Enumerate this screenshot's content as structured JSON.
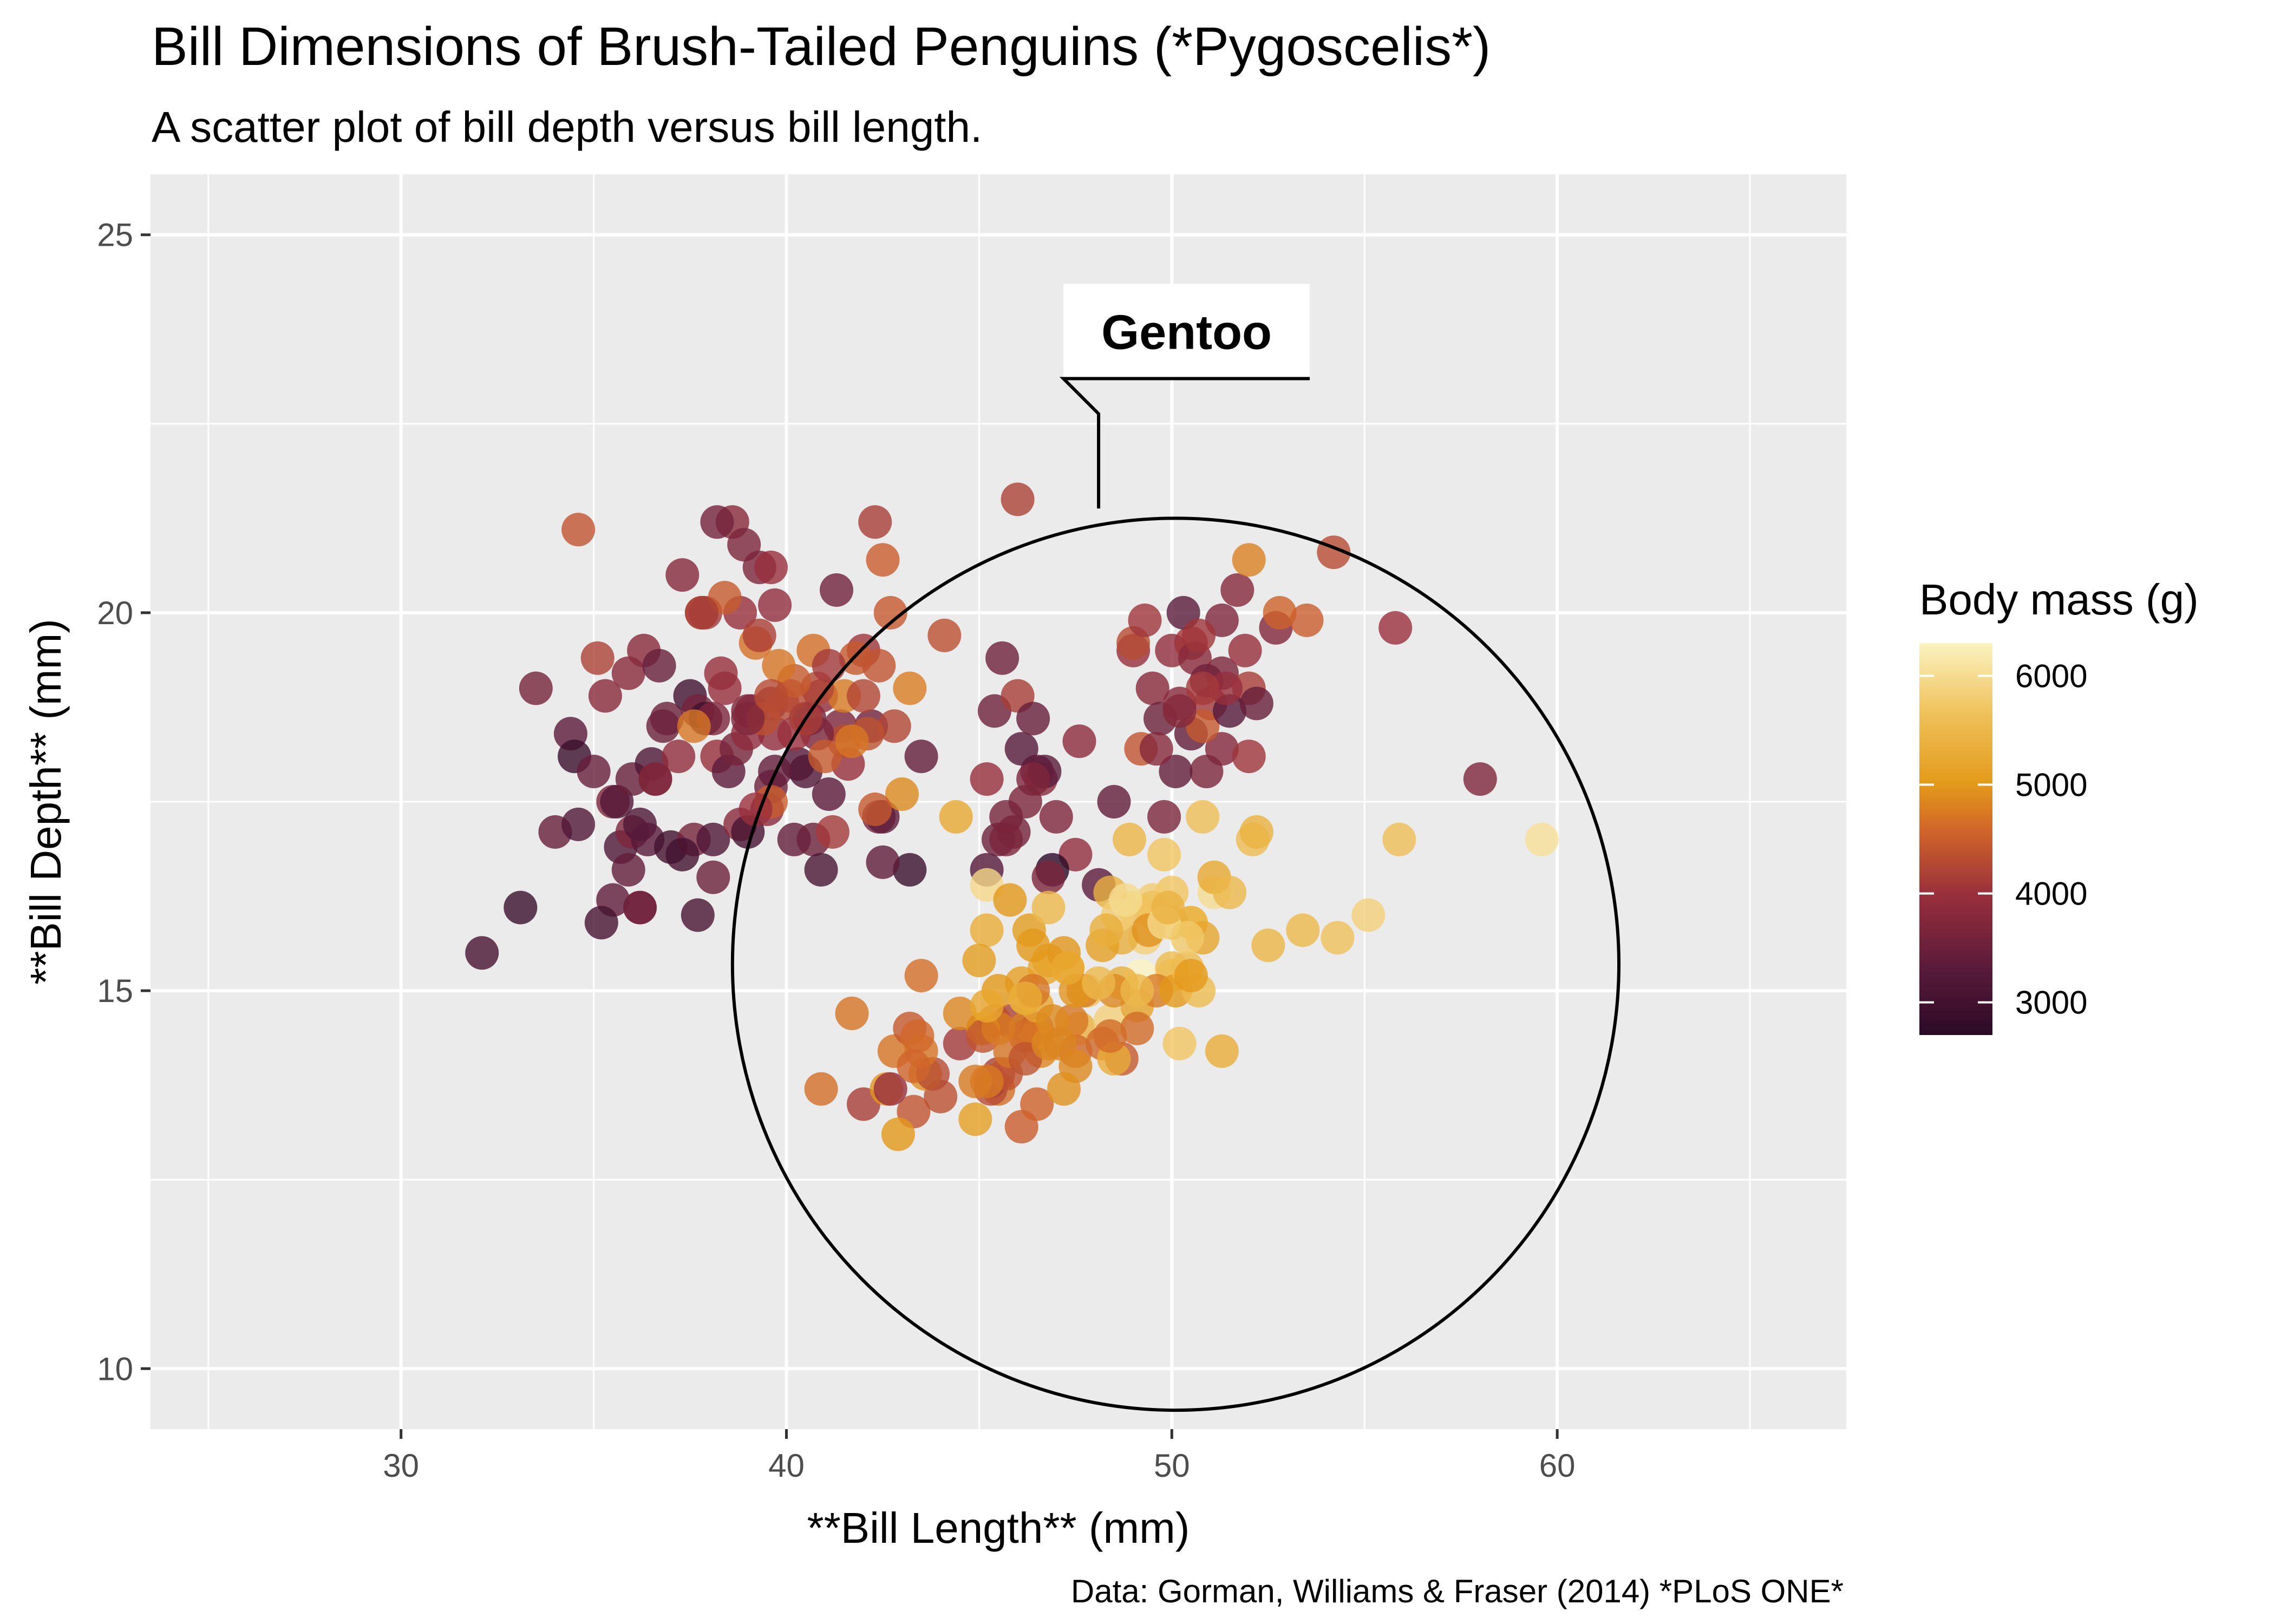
{
  "chart_data": {
    "type": "scatter",
    "title": "Bill Dimensions of Brush-Tailed Penguins (*Pygoscelis*)",
    "subtitle": "A scatter plot of bill depth versus bill length.",
    "caption": "Data: Gorman, Williams & Fraser (2014) *PLoS ONE*",
    "xlabel": "**Bill Length** (mm)",
    "ylabel": "**Bill Depth** (mm)",
    "xlim": [
      23.5,
      67.5
    ],
    "ylim": [
      9.2,
      25.8
    ],
    "x_ticks": [
      30,
      40,
      50,
      60
    ],
    "y_ticks": [
      10,
      15,
      20,
      25
    ],
    "grid": true,
    "legend": {
      "title": "Body mass (g)",
      "position": "right",
      "range": [
        2700,
        6300
      ],
      "ticks": [
        3000,
        4000,
        5000,
        6000
      ],
      "colors": [
        "#2b0a26",
        "#5a1a3a",
        "#9a2f3c",
        "#d0642a",
        "#e39a1a",
        "#efc15a",
        "#fbf3c0"
      ]
    },
    "annotation": {
      "label": "Gentoo",
      "circle_center": [
        50.1,
        15.35
      ],
      "circle_rx": 11.5,
      "circle_ry": 5.9
    },
    "points": [
      [
        32.1,
        15.5,
        3050
      ],
      [
        33.1,
        16.1,
        2900
      ],
      [
        33.5,
        19.0,
        3600
      ],
      [
        34.0,
        17.1,
        3450
      ],
      [
        34.4,
        18.4,
        3325
      ],
      [
        34.5,
        18.1,
        2900
      ],
      [
        34.6,
        21.1,
        4400
      ],
      [
        34.6,
        17.2,
        3200
      ],
      [
        35.0,
        17.9,
        3450
      ],
      [
        35.1,
        19.4,
        4200
      ],
      [
        35.3,
        18.9,
        3800
      ],
      [
        35.5,
        17.5,
        3700
      ],
      [
        35.5,
        16.2,
        3350
      ],
      [
        35.6,
        17.5,
        3200
      ],
      [
        35.7,
        16.9,
        3150
      ],
      [
        35.9,
        19.2,
        3800
      ],
      [
        36.0,
        17.8,
        3450
      ],
      [
        36.0,
        17.1,
        3700
      ],
      [
        36.2,
        17.2,
        3150
      ],
      [
        36.2,
        16.1,
        3550
      ],
      [
        36.3,
        19.5,
        3800
      ],
      [
        36.4,
        17.0,
        3285
      ],
      [
        36.5,
        18.0,
        3150
      ],
      [
        36.6,
        17.8,
        3700
      ],
      [
        36.7,
        19.3,
        3450
      ],
      [
        36.8,
        18.5,
        3500
      ],
      [
        36.9,
        18.6,
        3500
      ],
      [
        37.0,
        16.9,
        3000
      ],
      [
        37.2,
        18.1,
        3900
      ],
      [
        37.3,
        20.5,
        3775
      ],
      [
        37.5,
        18.9,
        2975
      ],
      [
        37.6,
        17.0,
        3600
      ],
      [
        37.7,
        18.7,
        3600
      ],
      [
        37.8,
        20.0,
        4400
      ],
      [
        37.9,
        18.6,
        2950
      ],
      [
        38.1,
        18.6,
        3700
      ],
      [
        38.1,
        17.0,
        3175
      ],
      [
        38.2,
        18.1,
        3950
      ],
      [
        38.5,
        17.9,
        3325
      ],
      [
        38.6,
        21.2,
        3800
      ],
      [
        38.8,
        17.2,
        3800
      ],
      [
        39.0,
        18.7,
        3650
      ],
      [
        39.1,
        18.7,
        3750
      ],
      [
        39.2,
        19.6,
        4675
      ],
      [
        39.3,
        20.6,
        3650
      ],
      [
        39.5,
        17.4,
        3800
      ],
      [
        39.6,
        17.7,
        3500
      ],
      [
        39.7,
        18.4,
        3900
      ],
      [
        40.2,
        17.0,
        3400
      ],
      [
        40.3,
        18.0,
        3250
      ],
      [
        40.6,
        18.6,
        3550
      ],
      [
        40.9,
        18.9,
        3900
      ],
      [
        41.1,
        17.6,
        3325
      ],
      [
        41.4,
        18.5,
        3700
      ],
      [
        41.6,
        18.0,
        3950
      ],
      [
        42.0,
        19.5,
        4050
      ],
      [
        42.2,
        18.5,
        3550
      ],
      [
        42.5,
        20.7,
        4500
      ],
      [
        42.8,
        18.5,
        4250
      ],
      [
        43.2,
        19.0,
        4775
      ],
      [
        36.6,
        17.8,
        3700
      ],
      [
        37.7,
        16.0,
        3075
      ],
      [
        38.8,
        20.0,
        3950
      ],
      [
        39.6,
        18.8,
        3800
      ],
      [
        40.1,
        18.9,
        4300
      ],
      [
        40.5,
        17.9,
        3200
      ],
      [
        40.7,
        17.0,
        3500
      ],
      [
        41.3,
        20.3,
        3550
      ],
      [
        41.5,
        18.3,
        4300
      ],
      [
        42.3,
        21.2,
        4150
      ],
      [
        35.2,
        15.9,
        3050
      ],
      [
        35.9,
        16.6,
        3400
      ],
      [
        36.2,
        16.1,
        3550
      ],
      [
        37.3,
        16.8,
        3000
      ],
      [
        38.1,
        16.5,
        3500
      ],
      [
        38.3,
        19.2,
        3950
      ],
      [
        39.0,
        17.1,
        3050
      ],
      [
        39.7,
        17.9,
        3400
      ],
      [
        40.8,
        18.4,
        3650
      ],
      [
        41.8,
        19.4,
        4450
      ],
      [
        46.5,
        17.9,
        3500
      ],
      [
        50.0,
        19.5,
        3900
      ],
      [
        51.3,
        19.2,
        3650
      ],
      [
        45.4,
        18.7,
        3525
      ],
      [
        52.7,
        19.8,
        3725
      ],
      [
        45.2,
        17.8,
        3950
      ],
      [
        46.1,
        18.2,
        3250
      ],
      [
        51.3,
        18.2,
        3750
      ],
      [
        46.0,
        18.9,
        4150
      ],
      [
        51.3,
        19.9,
        3700
      ],
      [
        46.6,
        17.8,
        3800
      ],
      [
        51.7,
        20.3,
        3775
      ],
      [
        47.0,
        17.3,
        3700
      ],
      [
        52.0,
        18.1,
        4050
      ],
      [
        45.9,
        17.1,
        3575
      ],
      [
        50.5,
        19.6,
        4050
      ],
      [
        50.3,
        20.0,
        3300
      ],
      [
        58.0,
        17.8,
        3700
      ],
      [
        46.4,
        18.6,
        3450
      ],
      [
        49.2,
        18.2,
        4400
      ],
      [
        42.4,
        17.3,
        3600
      ],
      [
        48.5,
        17.5,
        3400
      ],
      [
        43.2,
        16.6,
        2900
      ],
      [
        50.6,
        19.4,
        3800
      ],
      [
        46.7,
        17.9,
        3300
      ],
      [
        52.0,
        19.0,
        4150
      ],
      [
        50.5,
        18.4,
        3400
      ],
      [
        49.5,
        19.0,
        3800
      ],
      [
        46.4,
        17.8,
        3700
      ],
      [
        52.8,
        20.0,
        4550
      ],
      [
        40.9,
        16.6,
        3100
      ],
      [
        54.2,
        20.8,
        4300
      ],
      [
        42.5,
        16.7,
        3350
      ],
      [
        51.0,
        18.8,
        4100
      ],
      [
        49.7,
        18.6,
        3500
      ],
      [
        47.5,
        16.8,
        3900
      ],
      [
        47.6,
        18.3,
        3850
      ],
      [
        52.0,
        20.7,
        4800
      ],
      [
        46.9,
        16.6,
        2700
      ],
      [
        53.5,
        19.9,
        4500
      ],
      [
        49.0,
        19.5,
        3950
      ],
      [
        46.2,
        17.5,
        3650
      ],
      [
        50.9,
        19.1,
        3550
      ],
      [
        45.5,
        17.0,
        3500
      ],
      [
        50.9,
        17.9,
        3675
      ],
      [
        50.8,
        18.5,
        4450
      ],
      [
        50.1,
        17.9,
        3400
      ],
      [
        49.0,
        19.6,
        4300
      ],
      [
        51.5,
        18.7,
        3250
      ],
      [
        49.8,
        17.3,
        3675
      ],
      [
        48.1,
        16.4,
        3325
      ],
      [
        51.4,
        19.0,
        3950
      ],
      [
        45.7,
        17.3,
        3600
      ],
      [
        50.7,
        19.7,
        4050
      ],
      [
        42.5,
        17.3,
        3350
      ],
      [
        52.2,
        18.8,
        3450
      ],
      [
        45.2,
        16.6,
        3250
      ],
      [
        49.3,
        19.9,
        4050
      ],
      [
        50.2,
        18.8,
        3800
      ],
      [
        45.6,
        19.4,
        3525
      ],
      [
        51.9,
        19.5,
        3950
      ],
      [
        46.8,
        16.5,
        3650
      ],
      [
        45.7,
        17.0,
        3650
      ],
      [
        55.8,
        19.8,
        4000
      ],
      [
        43.5,
        18.1,
        3400
      ],
      [
        49.6,
        18.2,
        3775
      ],
      [
        50.8,
        19.0,
        4100
      ],
      [
        50.2,
        18.7,
        3775
      ],
      [
        46.1,
        13.2,
        4500
      ],
      [
        50.0,
        16.3,
        5700
      ],
      [
        48.7,
        14.1,
        4450
      ],
      [
        50.0,
        15.2,
        5700
      ],
      [
        47.6,
        14.5,
        5400
      ],
      [
        46.5,
        13.5,
        4550
      ],
      [
        45.4,
        14.6,
        4800
      ],
      [
        46.7,
        15.3,
        5200
      ],
      [
        43.3,
        13.4,
        4400
      ],
      [
        46.8,
        15.4,
        5150
      ],
      [
        40.9,
        13.7,
        4650
      ],
      [
        49.0,
        16.1,
        5550
      ],
      [
        45.5,
        13.7,
        4650
      ],
      [
        48.4,
        14.6,
        5850
      ],
      [
        45.8,
        14.6,
        4200
      ],
      [
        49.3,
        15.7,
        5850
      ],
      [
        42.0,
        13.5,
        4150
      ],
      [
        49.2,
        15.2,
        6300
      ],
      [
        46.2,
        14.5,
        4800
      ],
      [
        48.7,
        15.1,
        5350
      ],
      [
        50.2,
        14.3,
        5700
      ],
      [
        45.1,
        14.5,
        5000
      ],
      [
        46.5,
        14.5,
        4400
      ],
      [
        46.3,
        15.8,
        5050
      ],
      [
        42.9,
        13.1,
        5000
      ],
      [
        46.1,
        15.1,
        5100
      ],
      [
        44.5,
        14.3,
        4100
      ],
      [
        47.8,
        15.0,
        5650
      ],
      [
        48.2,
        14.3,
        4600
      ],
      [
        50.0,
        15.3,
        5550
      ],
      [
        47.3,
        15.3,
        5250
      ],
      [
        42.8,
        14.2,
        4700
      ],
      [
        45.1,
        14.5,
        5050
      ],
      [
        59.6,
        17.0,
        6050
      ],
      [
        49.1,
        14.8,
        5150
      ],
      [
        48.4,
        16.3,
        5400
      ],
      [
        42.6,
        13.7,
        4950
      ],
      [
        44.4,
        17.3,
        5250
      ],
      [
        44.0,
        13.6,
        4350
      ],
      [
        48.7,
        15.7,
        5350
      ],
      [
        42.7,
        13.7,
        3950
      ],
      [
        49.6,
        16.0,
        5700
      ],
      [
        45.3,
        13.7,
        4300
      ],
      [
        49.6,
        15.0,
        4750
      ],
      [
        50.5,
        15.9,
        5550
      ],
      [
        43.6,
        13.9,
        4900
      ],
      [
        45.5,
        13.9,
        4200
      ],
      [
        50.5,
        15.9,
        5400
      ],
      [
        44.9,
        13.3,
        5100
      ],
      [
        45.2,
        15.8,
        5300
      ],
      [
        46.6,
        14.2,
        4850
      ],
      [
        48.5,
        14.1,
        5300
      ],
      [
        45.1,
        14.4,
        4400
      ],
      [
        50.1,
        15.0,
        5000
      ],
      [
        46.5,
        14.4,
        4900
      ],
      [
        45.0,
        15.4,
        5050
      ],
      [
        43.8,
        13.9,
        4300
      ],
      [
        45.5,
        15.0,
        5000
      ],
      [
        43.2,
        14.5,
        4450
      ],
      [
        50.4,
        15.3,
        5550
      ],
      [
        45.3,
        13.8,
        4200
      ],
      [
        46.2,
        14.9,
        5300
      ],
      [
        45.7,
        13.9,
        4400
      ],
      [
        54.3,
        15.7,
        5650
      ],
      [
        45.8,
        14.2,
        4700
      ],
      [
        49.8,
        16.8,
        5700
      ],
      [
        46.2,
        14.4,
        4650
      ],
      [
        49.5,
        16.2,
        5800
      ],
      [
        43.5,
        14.2,
        4700
      ],
      [
        50.7,
        15.0,
        5550
      ],
      [
        47.7,
        15.0,
        4750
      ],
      [
        46.4,
        15.6,
        5000
      ],
      [
        48.2,
        15.6,
        5100
      ],
      [
        46.5,
        14.8,
        5200
      ],
      [
        46.4,
        15.0,
        4700
      ],
      [
        48.6,
        16.0,
        5800
      ],
      [
        47.5,
        14.2,
        4600
      ],
      [
        51.1,
        16.3,
        6000
      ],
      [
        45.2,
        13.8,
        4750
      ],
      [
        45.2,
        16.4,
        5950
      ],
      [
        49.1,
        14.5,
        4625
      ],
      [
        52.5,
        15.6,
        5450
      ],
      [
        47.4,
        14.6,
        4725
      ],
      [
        50.0,
        15.9,
        5350
      ],
      [
        44.9,
        13.8,
        4750
      ],
      [
        50.8,
        17.3,
        5600
      ],
      [
        43.4,
        14.4,
        4600
      ],
      [
        51.3,
        14.2,
        5300
      ],
      [
        47.5,
        14.0,
        4875
      ],
      [
        52.1,
        17.0,
        5550
      ],
      [
        47.5,
        15.0,
        4950
      ],
      [
        52.2,
        17.1,
        5400
      ],
      [
        45.5,
        14.5,
        4750
      ],
      [
        49.5,
        16.1,
        5650
      ],
      [
        44.5,
        14.7,
        4850
      ],
      [
        50.8,
        15.7,
        5200
      ],
      [
        49.4,
        15.8,
        4925
      ],
      [
        46.9,
        14.6,
        4875
      ],
      [
        48.4,
        14.4,
        4625
      ],
      [
        51.1,
        16.5,
        5250
      ],
      [
        48.5,
        15.0,
        4850
      ],
      [
        55.9,
        17.0,
        5600
      ],
      [
        47.2,
        15.5,
        4975
      ],
      [
        49.1,
        15.0,
        5500
      ],
      [
        46.8,
        16.1,
        5500
      ],
      [
        41.7,
        14.7,
        4700
      ],
      [
        53.4,
        15.8,
        5500
      ],
      [
        43.3,
        14.0,
        4575
      ],
      [
        48.1,
        15.1,
        5500
      ],
      [
        50.5,
        15.2,
        5000
      ],
      [
        49.8,
        15.9,
        5950
      ],
      [
        43.5,
        15.2,
        4650
      ],
      [
        51.5,
        16.3,
        5500
      ],
      [
        46.2,
        14.1,
        4375
      ],
      [
        55.1,
        16.0,
        5850
      ],
      [
        48.8,
        16.2,
        6000
      ],
      [
        47.2,
        13.7,
        4925
      ],
      [
        46.8,
        14.3,
        4850
      ],
      [
        50.4,
        15.7,
        5750
      ],
      [
        45.2,
        14.8,
        5200
      ],
      [
        49.9,
        16.1,
        5400
      ],
      [
        46.2,
        14.9,
        5300
      ],
      [
        47.3,
        15.3,
        5250
      ],
      [
        44.1,
        19.7,
        4350
      ],
      [
        45.8,
        16.2,
        5000
      ],
      [
        46.0,
        21.5,
        4200
      ],
      [
        43.0,
        17.6,
        4875
      ],
      [
        48.3,
        15.8,
        5350
      ],
      [
        47.1,
        14.3,
        4825
      ],
      [
        48.9,
        17.0,
        5450
      ],
      [
        38.4,
        19.0,
        3950
      ],
      [
        39.9,
        18.8,
        4275
      ],
      [
        39.3,
        19.7,
        4175
      ],
      [
        37.9,
        20.0,
        4100
      ],
      [
        40.7,
        19.5,
        4650
      ],
      [
        41.5,
        18.9,
        4750
      ],
      [
        42.4,
        19.3,
        4400
      ],
      [
        38.9,
        20.9,
        3650
      ],
      [
        40.2,
        18.4,
        4000
      ],
      [
        39.6,
        17.5,
        4500
      ],
      [
        40.8,
        19.0,
        4250
      ],
      [
        38.7,
        18.2,
        3600
      ],
      [
        42.1,
        18.4,
        4375
      ],
      [
        40.5,
        18.6,
        4150
      ],
      [
        42.7,
        20.0,
        4450
      ],
      [
        40.2,
        19.1,
        4475
      ],
      [
        41.0,
        18.1,
        4475
      ],
      [
        39.8,
        19.3,
        4700
      ],
      [
        37.6,
        18.5,
        4725
      ],
      [
        42.3,
        17.4,
        4450
      ],
      [
        39.7,
        20.1,
        3900
      ],
      [
        38.4,
        20.2,
        4475
      ],
      [
        39.6,
        20.6,
        3975
      ],
      [
        42.0,
        18.9,
        4250
      ],
      [
        38.2,
        21.2,
        3575
      ],
      [
        41.1,
        19.3,
        4100
      ],
      [
        37.8,
        20.0,
        4150
      ],
      [
        41.2,
        17.1,
        4100
      ],
      [
        39.0,
        18.4,
        3875
      ],
      [
        39.2,
        17.4,
        4000
      ],
      [
        39.4,
        18.6,
        4350
      ],
      [
        39.0,
        18.6,
        3700
      ],
      [
        41.7,
        18.3,
        4725
      ],
      [
        39.6,
        18.9,
        4300
      ]
    ]
  }
}
